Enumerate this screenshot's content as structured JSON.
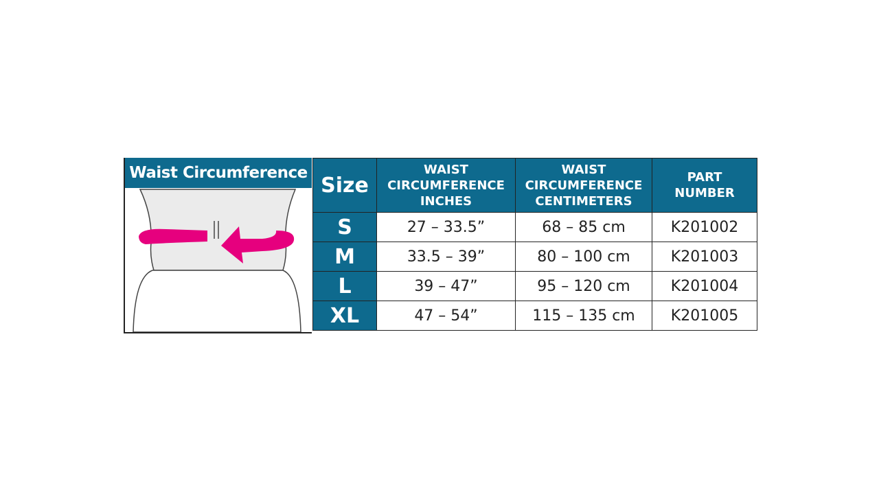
{
  "illustration": {
    "title": "Waist Circumference"
  },
  "table": {
    "headers": [
      [
        "Size"
      ],
      [
        "WAIST",
        "CIRCUMFERENCE",
        "INCHES"
      ],
      [
        "WAIST",
        "CIRCUMFERENCE",
        "CENTIMETERS"
      ],
      [
        "PART",
        "NUMBER"
      ]
    ],
    "rows": [
      [
        "S",
        "27 – 33.5”",
        "68 – 85 cm",
        "K201002"
      ],
      [
        "M",
        "33.5 – 39”",
        "80 – 100 cm",
        "K201003"
      ],
      [
        "L",
        "39 – 47”",
        "95 – 120 cm",
        "K201004"
      ],
      [
        "XL",
        "47 – 54”",
        "115 – 135 cm",
        "K201005"
      ]
    ]
  }
}
